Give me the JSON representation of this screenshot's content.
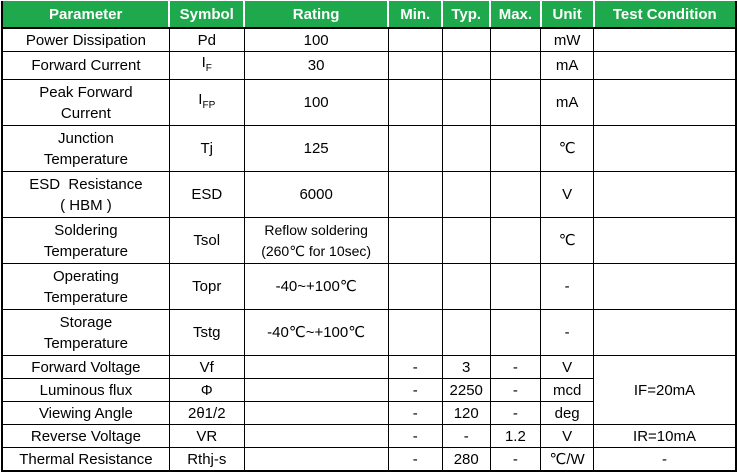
{
  "colors": {
    "header_bg": "#1FA94D",
    "header_text": "#FFFFFF",
    "body_text": "#000000",
    "border": "#000000"
  },
  "table": {
    "headers": [
      "Parameter",
      "Symbol",
      "Rating",
      "Min.",
      "Typ.",
      "Max.",
      "Unit",
      "Test Condition"
    ],
    "rows": [
      {
        "parameter": "Power Dissipation",
        "symbol": "Pd",
        "symbol_sub": "",
        "rating": "100",
        "min": "",
        "typ": "",
        "max": "",
        "unit": "mW",
        "test_condition": ""
      },
      {
        "parameter": "Forward Current",
        "symbol": "I",
        "symbol_sub": "F",
        "rating": "30",
        "min": "",
        "typ": "",
        "max": "",
        "unit": "mA",
        "test_condition": ""
      },
      {
        "parameter": "Peak Forward\nCurrent",
        "symbol": "I",
        "symbol_sub": "FP",
        "rating": "100",
        "min": "",
        "typ": "",
        "max": "",
        "unit": "mA",
        "test_condition": ""
      },
      {
        "parameter": "Junction\nTemperature",
        "symbol": "Tj",
        "symbol_sub": "",
        "rating": "125",
        "min": "",
        "typ": "",
        "max": "",
        "unit": "℃",
        "test_condition": ""
      },
      {
        "parameter": "ESD  Resistance\n( HBM )",
        "symbol": "ESD",
        "symbol_sub": "",
        "rating": "6000",
        "min": "",
        "typ": "",
        "max": "",
        "unit": "V",
        "test_condition": ""
      },
      {
        "parameter": "Soldering\nTemperature",
        "symbol": "Tsol",
        "symbol_sub": "",
        "rating": "Reflow soldering\n(260℃ for 10sec)",
        "min": "",
        "typ": "",
        "max": "",
        "unit": "℃",
        "test_condition": ""
      },
      {
        "parameter": "Operating\nTemperature",
        "symbol": "Topr",
        "symbol_sub": "",
        "rating": "-40~+100℃",
        "min": "",
        "typ": "",
        "max": "",
        "unit": "-",
        "test_condition": ""
      },
      {
        "parameter": "Storage\nTemperature",
        "symbol": "Tstg",
        "symbol_sub": "",
        "rating": "-40℃~+100℃",
        "min": "",
        "typ": "",
        "max": "",
        "unit": "-",
        "test_condition": ""
      },
      {
        "parameter": "Forward Voltage",
        "symbol": "Vf",
        "symbol_sub": "",
        "rating": "",
        "min": "-",
        "typ": "3",
        "max": "-",
        "unit": "V",
        "test_condition": "IF=20mA"
      },
      {
        "parameter": "Luminous flux",
        "symbol": "Φ",
        "symbol_sub": "",
        "rating": "",
        "min": "-",
        "typ": "2250",
        "max": "-",
        "unit": "mcd",
        "test_condition": ""
      },
      {
        "parameter": "Viewing Angle",
        "symbol": "2θ1/2",
        "symbol_sub": "",
        "rating": "",
        "min": "-",
        "typ": "120",
        "max": "-",
        "unit": "deg",
        "test_condition": ""
      },
      {
        "parameter": "Reverse Voltage",
        "symbol": "VR",
        "symbol_sub": "",
        "rating": "",
        "min": "-",
        "typ": "-",
        "max": "1.2",
        "unit": "V",
        "test_condition": "IR=10mA"
      },
      {
        "parameter": "Thermal Resistance",
        "symbol": "Rthj-s",
        "symbol_sub": "",
        "rating": "",
        "min": "-",
        "typ": "280",
        "max": "-",
        "unit": "℃/W",
        "test_condition": "-"
      }
    ]
  }
}
